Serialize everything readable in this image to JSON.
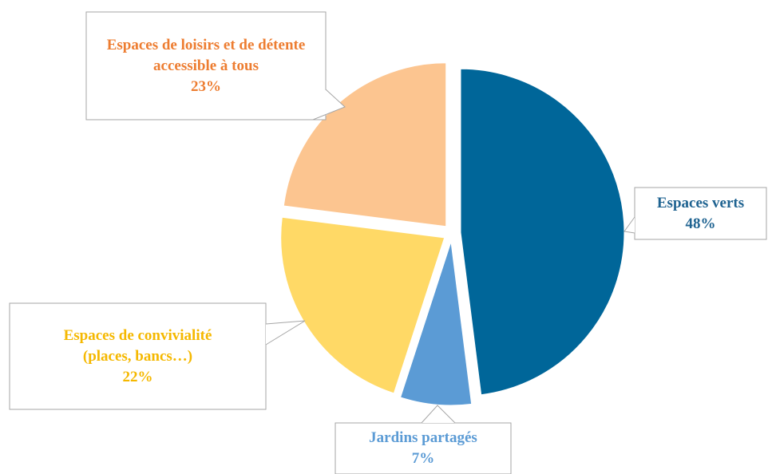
{
  "chart_data": {
    "type": "pie",
    "categories": [
      "Espaces verts",
      "Jardins partagés",
      "Espaces de convivialité (places, bancs…)",
      "Espaces de loisirs et de détente accessible à tous"
    ],
    "values": [
      48,
      7,
      22,
      23
    ],
    "value_labels": [
      "48%",
      "7%",
      "22%",
      "23%"
    ],
    "colors": [
      "#006699",
      "#5b9bd5",
      "#ffd966",
      "#fcc590"
    ],
    "label_colors": [
      "#1f6391",
      "#5b9bd5",
      "#f5b800",
      "#ed7d31"
    ],
    "start_angle": 0,
    "direction": "clockwise"
  }
}
